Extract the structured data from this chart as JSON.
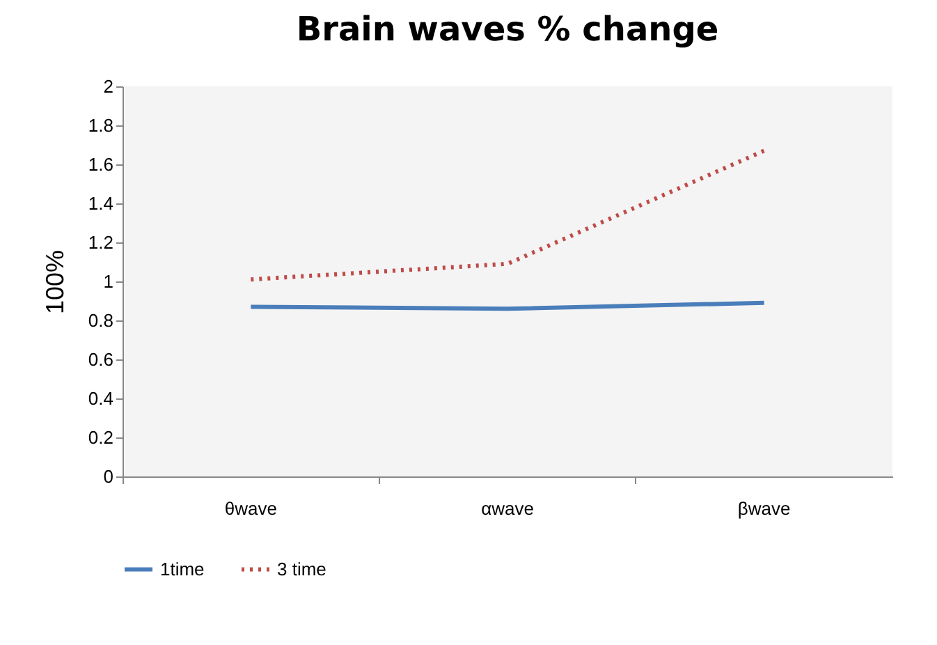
{
  "chart_data": {
    "type": "line",
    "title": "Brain waves % change",
    "ylabel": "100%",
    "categories": [
      "θwave",
      "αwave",
      "βwave"
    ],
    "series": [
      {
        "name": "1time",
        "color": "#4a7ebb",
        "values": [
          0.87,
          0.86,
          0.89
        ],
        "line_style": "solid"
      },
      {
        "name": "3 time",
        "color": "#be4b48",
        "values": [
          1.01,
          1.09,
          1.67
        ],
        "line_style": "dotted"
      }
    ],
    "ylim": [
      0,
      2
    ],
    "yticks": [
      0,
      0.2,
      0.4,
      0.6,
      0.8,
      1,
      1.2,
      1.4,
      1.6,
      1.8,
      2
    ],
    "grid": false,
    "legend": "bottom",
    "marker": "none"
  }
}
